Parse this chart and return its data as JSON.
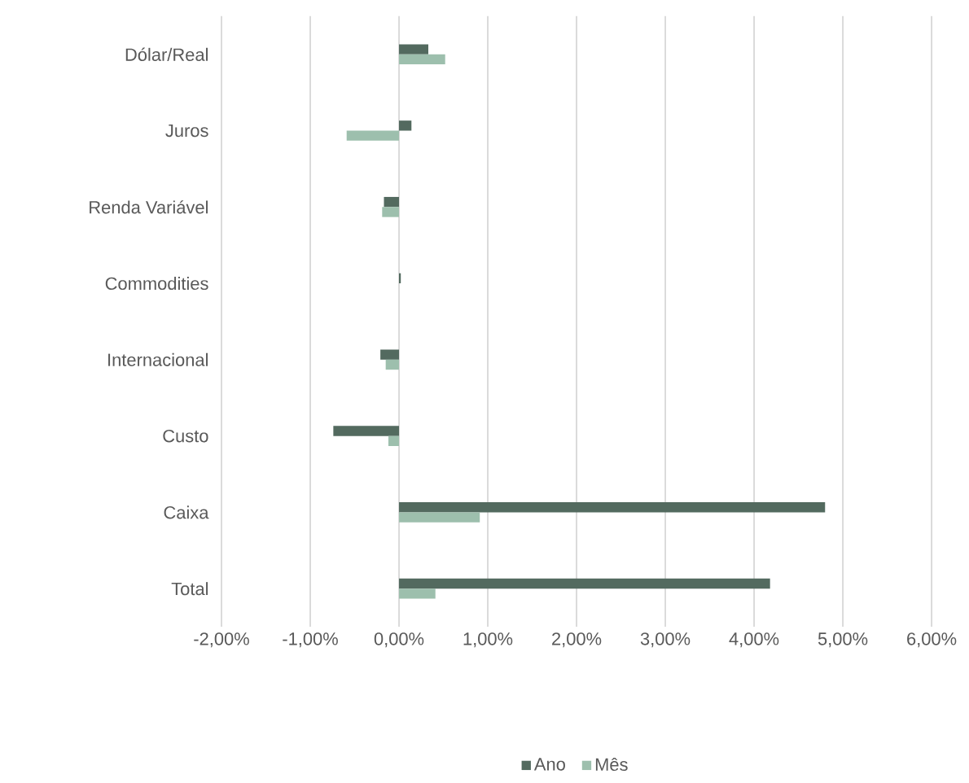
{
  "chart_data": {
    "type": "bar",
    "orientation": "horizontal",
    "categories": [
      "Dólar/Real",
      "Juros",
      "Renda Variável",
      "Commodities",
      "Internacional",
      "Custo",
      "Caixa",
      "Total"
    ],
    "series": [
      {
        "name": "Ano",
        "color": "#536a5f",
        "values": [
          0.33,
          0.14,
          -0.17,
          0.02,
          -0.21,
          -0.74,
          4.8,
          4.18
        ]
      },
      {
        "name": "Mês",
        "color": "#9dbfad",
        "values": [
          0.52,
          -0.59,
          -0.19,
          0.0,
          -0.15,
          -0.12,
          0.91,
          0.41
        ]
      }
    ],
    "xlim": [
      -2,
      6
    ],
    "xticks": [
      {
        "value": -2,
        "label": "-2,00%"
      },
      {
        "value": -1,
        "label": "-1,00%"
      },
      {
        "value": 0,
        "label": "0,00%"
      },
      {
        "value": 1,
        "label": "1,00%"
      },
      {
        "value": 2,
        "label": "2,00%"
      },
      {
        "value": 3,
        "label": "3,00%"
      },
      {
        "value": 4,
        "label": "4,00%"
      },
      {
        "value": 5,
        "label": "5,00%"
      },
      {
        "value": 6,
        "label": "6,00%"
      }
    ],
    "grid": "x",
    "legend": "bottom"
  }
}
